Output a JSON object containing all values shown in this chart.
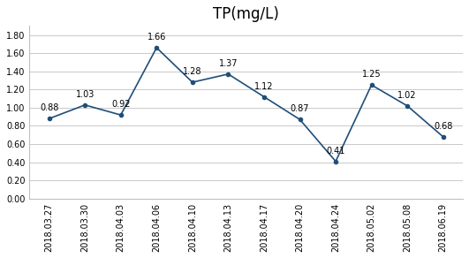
{
  "title": "TP(mg/L)",
  "dates": [
    "2018.03.27",
    "2018.03.30",
    "2018.04.03",
    "2018.04.06",
    "2018.04.10",
    "2018.04.13",
    "2018.04.17",
    "2018.04.20",
    "2018.04.24",
    "2018.05.02",
    "2018.05.08",
    "2018.06.19"
  ],
  "values": [
    0.88,
    1.03,
    0.92,
    1.66,
    1.28,
    1.37,
    1.12,
    0.87,
    0.41,
    1.25,
    1.02,
    0.68
  ],
  "ylim": [
    0.0,
    1.9
  ],
  "yticks": [
    0.0,
    0.2,
    0.4,
    0.6,
    0.8,
    1.0,
    1.2,
    1.4,
    1.6,
    1.8
  ],
  "line_color": "#1F4E79",
  "marker": "o",
  "marker_size": 3,
  "background_color": "#ffffff",
  "title_fontsize": 12,
  "label_fontsize": 7,
  "annotation_fontsize": 7,
  "annotation_offsets": [
    6,
    6,
    6,
    6,
    6,
    6,
    6,
    6,
    6,
    6,
    6,
    6
  ]
}
